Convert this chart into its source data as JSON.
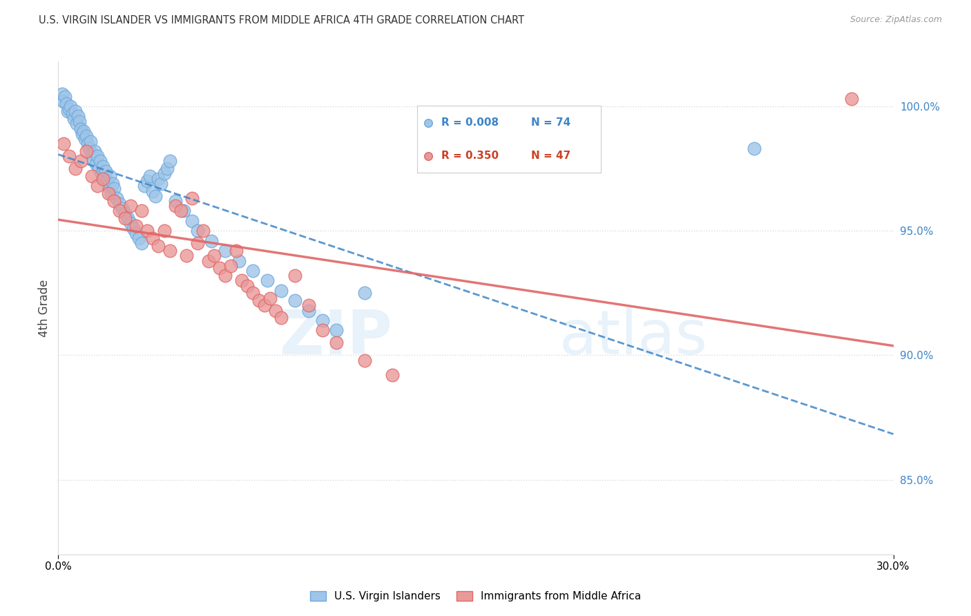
{
  "title": "U.S. VIRGIN ISLANDER VS IMMIGRANTS FROM MIDDLE AFRICA 4TH GRADE CORRELATION CHART",
  "source": "Source: ZipAtlas.com",
  "ylabel": "4th Grade",
  "xlim": [
    0.0,
    30.0
  ],
  "ylim": [
    82.0,
    101.8
  ],
  "yticks": [
    85.0,
    90.0,
    95.0,
    100.0
  ],
  "ytick_labels": [
    "85.0%",
    "90.0%",
    "95.0%",
    "100.0%"
  ],
  "xtick_labels": [
    "0.0%",
    "30.0%"
  ],
  "color_blue_fill": "#9fc5e8",
  "color_blue_edge": "#6fa8dc",
  "color_blue_text": "#3d85c8",
  "color_pink_fill": "#ea9999",
  "color_pink_edge": "#e06666",
  "color_pink_text": "#cc4125",
  "color_grid": "#d9d9d9",
  "label_blue": "U.S. Virgin Islanders",
  "label_pink": "Immigrants from Middle Africa",
  "blue_x": [
    0.15,
    0.2,
    0.25,
    0.3,
    0.35,
    0.4,
    0.45,
    0.5,
    0.55,
    0.6,
    0.65,
    0.7,
    0.75,
    0.8,
    0.85,
    0.9,
    0.95,
    1.0,
    1.05,
    1.1,
    1.15,
    1.2,
    1.25,
    1.3,
    1.35,
    1.4,
    1.45,
    1.5,
    1.55,
    1.6,
    1.65,
    1.7,
    1.75,
    1.8,
    1.85,
    1.9,
    1.95,
    2.0,
    2.1,
    2.2,
    2.3,
    2.4,
    2.5,
    2.6,
    2.7,
    2.8,
    2.9,
    3.0,
    3.1,
    3.2,
    3.3,
    3.4,
    3.5,
    3.6,
    3.7,
    3.8,
    3.9,
    4.0,
    4.2,
    4.5,
    4.8,
    5.0,
    5.5,
    6.0,
    6.5,
    7.0,
    7.5,
    8.0,
    8.5,
    9.0,
    9.5,
    10.0,
    11.0,
    25.0
  ],
  "blue_y": [
    100.5,
    100.2,
    100.4,
    100.1,
    99.8,
    99.9,
    100.0,
    99.7,
    99.5,
    99.8,
    99.3,
    99.6,
    99.4,
    99.1,
    98.9,
    99.0,
    98.7,
    98.8,
    98.5,
    98.3,
    98.6,
    98.1,
    97.9,
    98.2,
    97.7,
    98.0,
    97.5,
    97.8,
    97.3,
    97.6,
    97.1,
    97.4,
    97.0,
    96.8,
    97.2,
    96.5,
    96.9,
    96.7,
    96.3,
    96.1,
    95.9,
    95.7,
    95.5,
    95.3,
    95.1,
    94.9,
    94.7,
    94.5,
    96.8,
    97.0,
    97.2,
    96.6,
    96.4,
    97.1,
    96.9,
    97.3,
    97.5,
    97.8,
    96.2,
    95.8,
    95.4,
    95.0,
    94.6,
    94.2,
    93.8,
    93.4,
    93.0,
    92.6,
    92.2,
    91.8,
    91.4,
    91.0,
    92.5,
    98.3
  ],
  "pink_x": [
    0.2,
    0.4,
    0.6,
    0.8,
    1.0,
    1.2,
    1.4,
    1.6,
    1.8,
    2.0,
    2.2,
    2.4,
    2.6,
    2.8,
    3.0,
    3.2,
    3.4,
    3.6,
    3.8,
    4.0,
    4.2,
    4.4,
    4.6,
    4.8,
    5.0,
    5.2,
    5.4,
    5.6,
    5.8,
    6.0,
    6.2,
    6.4,
    6.6,
    6.8,
    7.0,
    7.2,
    7.4,
    7.6,
    7.8,
    8.0,
    8.5,
    9.0,
    9.5,
    10.0,
    11.0,
    12.0,
    28.5
  ],
  "pink_y": [
    98.5,
    98.0,
    97.5,
    97.8,
    98.2,
    97.2,
    96.8,
    97.1,
    96.5,
    96.2,
    95.8,
    95.5,
    96.0,
    95.2,
    95.8,
    95.0,
    94.7,
    94.4,
    95.0,
    94.2,
    96.0,
    95.8,
    94.0,
    96.3,
    94.5,
    95.0,
    93.8,
    94.0,
    93.5,
    93.2,
    93.6,
    94.2,
    93.0,
    92.8,
    92.5,
    92.2,
    92.0,
    92.3,
    91.8,
    91.5,
    93.2,
    92.0,
    91.0,
    90.5,
    89.8,
    89.2,
    100.3
  ]
}
